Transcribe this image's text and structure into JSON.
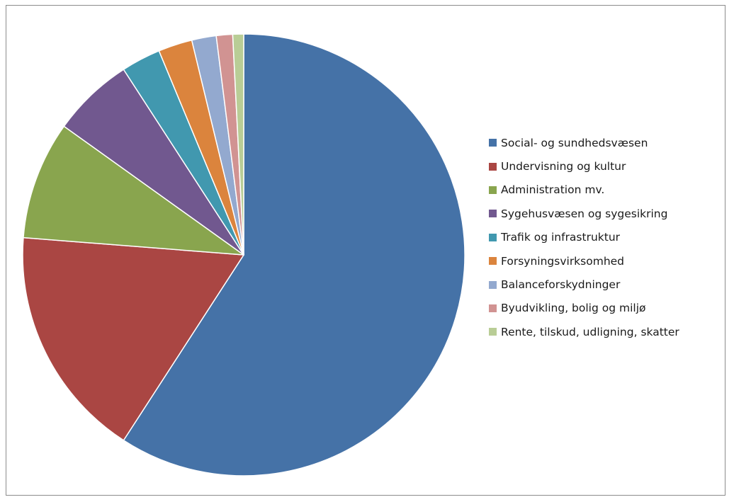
{
  "chart_data": {
    "type": "pie",
    "title": "",
    "start_angle_deg": 0,
    "direction": "clockwise",
    "legend_position": "right",
    "slices": [
      {
        "label": "Social- og sundhedsvæsen",
        "value": 59.5,
        "color": "#4572A7"
      },
      {
        "label": "Undervisning og kultur",
        "value": 17.2,
        "color": "#AA4643"
      },
      {
        "label": "Administration mv.",
        "value": 8.7,
        "color": "#89A54E"
      },
      {
        "label": "Sygehusvæsen og sygesikring",
        "value": 6.0,
        "color": "#71588F"
      },
      {
        "label": "Trafik og infrastruktur",
        "value": 2.9,
        "color": "#4198AF"
      },
      {
        "label": "Forsyningsvirksomhed",
        "value": 2.5,
        "color": "#DB843D"
      },
      {
        "label": "Balanceforskydninger",
        "value": 1.8,
        "color": "#93A9CF"
      },
      {
        "label": "Byudvikling, bolig og miljø",
        "value": 1.2,
        "color": "#D19392"
      },
      {
        "label": "Rente, tilskud, udligning, skatter",
        "value": 0.8,
        "color": "#B9CD96"
      }
    ]
  }
}
